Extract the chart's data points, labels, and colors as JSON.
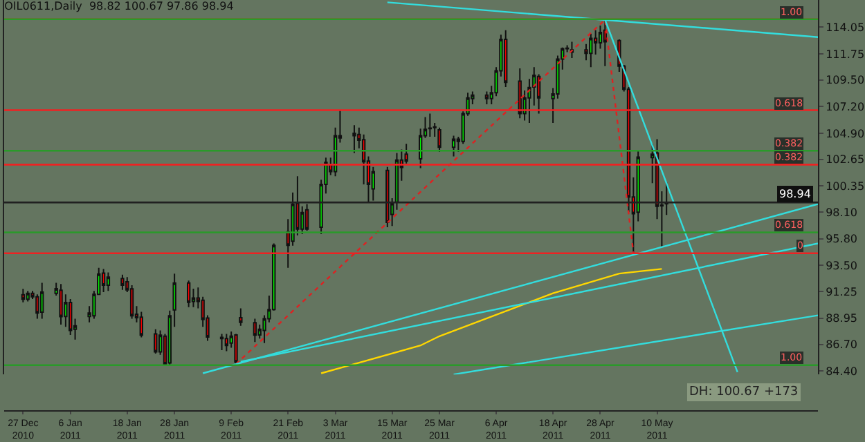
{
  "chart_data": {
    "type": "candlestick",
    "title": "OIL0611,Daily  98.82 100.67 97.86 98.94",
    "x": [
      "2010-12-27",
      "2010-12-28",
      "2010-12-29",
      "2010-12-30",
      "2010-12-31",
      "2011-01-03",
      "2011-01-04",
      "2011-01-05",
      "2011-01-06",
      "2011-01-07",
      "2011-01-10",
      "2011-01-11",
      "2011-01-12",
      "2011-01-13",
      "2011-01-14",
      "2011-01-17",
      "2011-01-18",
      "2011-01-19",
      "2011-01-20",
      "2011-01-21",
      "2011-01-24",
      "2011-01-25",
      "2011-01-26",
      "2011-01-27",
      "2011-01-28",
      "2011-01-31",
      "2011-02-01",
      "2011-02-02",
      "2011-02-03",
      "2011-02-04",
      "2011-02-07",
      "2011-02-08",
      "2011-02-09",
      "2011-02-10",
      "2011-02-11",
      "2011-02-14",
      "2011-02-15",
      "2011-02-16",
      "2011-02-17",
      "2011-02-18",
      "2011-02-21",
      "2011-02-22",
      "2011-02-23",
      "2011-02-24",
      "2011-02-25",
      "2011-02-28",
      "2011-03-01",
      "2011-03-02",
      "2011-03-03",
      "2011-03-04",
      "2011-03-07",
      "2011-03-08",
      "2011-03-09",
      "2011-03-10",
      "2011-03-11",
      "2011-03-14",
      "2011-03-15",
      "2011-03-16",
      "2011-03-17",
      "2011-03-18",
      "2011-03-21",
      "2011-03-22",
      "2011-03-23",
      "2011-03-24",
      "2011-03-25",
      "2011-03-28",
      "2011-03-29",
      "2011-03-30",
      "2011-03-31",
      "2011-04-01",
      "2011-04-04",
      "2011-04-05",
      "2011-04-06",
      "2011-04-07",
      "2011-04-08",
      "2011-04-11",
      "2011-04-12",
      "2011-04-13",
      "2011-04-14",
      "2011-04-15",
      "2011-04-18",
      "2011-04-19",
      "2011-04-20",
      "2011-04-21",
      "2011-04-22",
      "2011-04-25",
      "2011-04-26",
      "2011-04-27",
      "2011-04-28",
      "2011-04-29",
      "2011-05-02",
      "2011-05-03",
      "2011-05-04",
      "2011-05-05",
      "2011-05-06",
      "2011-05-09",
      "2011-05-10",
      "2011-05-11",
      "2011-05-12"
    ],
    "ohlc": [
      [
        90.98,
        91.48,
        90.32,
        90.59
      ],
      [
        90.59,
        91.3,
        90.4,
        91.1
      ],
      [
        91.1,
        91.3,
        90.6,
        90.8
      ],
      [
        90.8,
        91.0,
        88.9,
        89.4
      ],
      [
        89.47,
        92.0,
        88.9,
        91.21
      ],
      [
        91.1,
        92.0,
        90.9,
        91.5
      ],
      [
        91.36,
        91.9,
        88.4,
        89.08
      ],
      [
        89.1,
        91.0,
        88.2,
        90.3
      ],
      [
        90.3,
        90.6,
        87.5,
        87.9
      ],
      [
        88.0,
        88.9,
        87.1,
        88.3
      ],
      [
        89.1,
        90.0,
        88.6,
        89.4
      ],
      [
        89.16,
        91.3,
        88.9,
        91.02
      ],
      [
        91.0,
        93.3,
        91.0,
        92.76
      ],
      [
        92.84,
        93.2,
        91.2,
        91.79
      ],
      [
        91.8,
        92.9,
        91.3,
        92.5
      ],
      [
        92.37,
        92.7,
        91.4,
        91.79
      ],
      [
        92.1,
        92.5,
        91.2,
        91.4
      ],
      [
        91.48,
        91.8,
        88.9,
        89.16
      ],
      [
        89.3,
        90.0,
        88.6,
        89.0
      ],
      [
        89.04,
        89.5,
        87.3,
        87.49
      ],
      [
        87.6,
        88.0,
        85.9,
        86.05
      ],
      [
        86.05,
        87.9,
        85.8,
        87.49
      ],
      [
        87.4,
        87.6,
        84.9,
        85.0
      ],
      [
        85.1,
        89.6,
        84.9,
        89.16
      ],
      [
        89.66,
        92.8,
        88.2,
        91.99
      ],
      [
        91.99,
        92.2,
        89.9,
        90.32
      ],
      [
        90.4,
        91.5,
        89.9,
        90.7
      ],
      [
        90.7,
        91.6,
        89.8,
        90.4
      ],
      [
        90.5,
        90.8,
        88.2,
        88.85
      ],
      [
        88.96,
        89.2,
        87.0,
        87.33
      ],
      [
        87.3,
        87.6,
        86.2,
        87.2
      ],
      [
        87.2,
        87.6,
        86.1,
        86.6
      ],
      [
        86.8,
        87.8,
        86.4,
        87.4
      ],
      [
        87.5,
        87.6,
        85.0,
        85.17
      ],
      [
        89.0,
        89.8,
        88.3,
        88.6
      ],
      [
        88.57,
        88.9,
        86.9,
        87.49
      ],
      [
        87.5,
        88.4,
        87.2,
        88.0
      ],
      [
        87.9,
        89.2,
        86.8,
        88.9
      ],
      [
        88.9,
        90.9,
        88.6,
        89.7
      ],
      [
        89.7,
        95.4,
        89.6,
        95.24
      ],
      [
        96.4,
        97.5,
        93.3,
        95.24
      ],
      [
        95.6,
        99.8,
        95.2,
        98.8
      ],
      [
        98.85,
        101.2,
        96.1,
        96.64
      ],
      [
        96.64,
        98.6,
        96.2,
        98.07
      ],
      [
        98.3,
        98.8,
        96.5,
        96.64
      ],
      [
        96.8,
        100.9,
        96.2,
        100.5
      ],
      [
        100.5,
        102.8,
        99.7,
        102.4
      ],
      [
        102.2,
        102.8,
        101.3,
        101.6
      ],
      [
        101.6,
        105.4,
        101.2,
        104.7
      ],
      [
        104.5,
        106.9,
        104.1,
        104.7
      ],
      [
        104.7,
        105.6,
        103.2,
        104.9
      ],
      [
        104.8,
        105.4,
        103.6,
        104.3
      ],
      [
        104.35,
        104.8,
        100.5,
        102.45
      ],
      [
        102.5,
        102.9,
        99.0,
        100.5
      ],
      [
        100.1,
        102.0,
        99.1,
        101.6
      ],
      [
        101.7,
        102.0,
        96.8,
        97.22
      ],
      [
        97.9,
        99.3,
        96.9,
        98.85
      ],
      [
        98.96,
        103.2,
        98.3,
        102.6
      ],
      [
        102.6,
        103.5,
        100.8,
        101.95
      ],
      [
        103.1,
        104.0,
        102.3,
        102.5
      ],
      [
        102.7,
        105.3,
        101.9,
        104.7
      ],
      [
        104.7,
        106.3,
        104.5,
        105.25
      ],
      [
        105.3,
        106.6,
        104.6,
        105.35
      ],
      [
        105.4,
        105.8,
        104.6,
        105.45
      ],
      [
        105.2,
        105.4,
        103.3,
        103.7
      ],
      [
        103.7,
        104.7,
        102.9,
        104.4
      ],
      [
        104.4,
        104.6,
        103.3,
        104.2
      ],
      [
        104.2,
        106.8,
        104.0,
        106.6
      ],
      [
        106.6,
        108.4,
        106.4,
        107.96
      ],
      [
        107.9,
        108.5,
        107.4,
        108.2
      ],
      [
        108.2,
        108.5,
        107.4,
        107.9
      ],
      [
        107.9,
        109.0,
        107.4,
        108.4
      ],
      [
        108.4,
        110.6,
        108.1,
        110.3
      ],
      [
        110.3,
        113.4,
        109.8,
        113.0
      ],
      [
        113.0,
        113.8,
        108.9,
        109.3
      ],
      [
        109.4,
        110.5,
        106.2,
        106.6
      ],
      [
        106.6,
        108.6,
        106.0,
        107.96
      ],
      [
        107.96,
        109.6,
        105.8,
        108.85
      ],
      [
        108.9,
        110.6,
        107.3,
        109.9
      ],
      [
        109.8,
        110.0,
        106.6,
        107.96
      ],
      [
        107.9,
        108.8,
        105.8,
        108.3
      ],
      [
        108.3,
        111.6,
        107.9,
        111.3
      ],
      [
        111.3,
        112.3,
        110.4,
        112.2
      ],
      [
        112.2,
        112.5,
        111.9,
        112.25
      ],
      [
        111.9,
        112.8,
        111.4,
        112.1
      ],
      [
        112.1,
        112.6,
        111.2,
        111.8
      ],
      [
        111.8,
        113.5,
        110.6,
        113.1
      ],
      [
        113.1,
        113.8,
        111.7,
        112.7
      ],
      [
        112.7,
        114.2,
        112.2,
        113.6
      ],
      [
        113.8,
        114.7,
        110.7,
        112.8
      ],
      [
        112.9,
        113.0,
        110.2,
        110.7
      ],
      [
        110.7,
        110.8,
        108.5,
        108.7
      ],
      [
        108.7,
        108.9,
        98.1,
        99.4
      ],
      [
        99.4,
        101.1,
        94.6,
        97.96
      ],
      [
        98.1,
        103.4,
        97.3,
        102.84
      ],
      [
        102.8,
        104.0,
        100.6,
        103.1
      ],
      [
        103.2,
        104.4,
        97.5,
        98.6
      ],
      [
        98.7,
        99.9,
        95.1,
        98.65
      ],
      [
        98.82,
        100.67,
        97.86,
        98.94
      ]
    ],
    "series": [
      {
        "type": "line",
        "color": "#ffd700",
        "line_style": "solid",
        "x": [
          "2011-02-28",
          "2011-03-21",
          "2011-03-25",
          "2011-04-18",
          "2011-05-02",
          "2011-05-11"
        ],
        "values": [
          84.2,
          86.6,
          87.4,
          91.1,
          92.8,
          93.2
        ]
      },
      {
        "type": "line",
        "color": "#dd2222",
        "line_style": "dotted",
        "x": [
          "2011-02-10",
          "2011-04-29",
          "2011-05-05"
        ],
        "values": [
          85.0,
          114.7,
          94.6
        ]
      },
      {
        "type": "line",
        "color": "#33dddd",
        "line_style": "solid",
        "x": [
          "2011-03-14",
          "2011-06-13"
        ],
        "values": [
          116.2,
          113.2
        ]
      },
      {
        "type": "line",
        "color": "#33dddd",
        "line_style": "solid",
        "x": [
          "2011-04-29",
          "2011-05-27"
        ],
        "values": [
          114.7,
          84.3
        ]
      },
      {
        "type": "line",
        "color": "#33dddd",
        "line_style": "solid",
        "x": [
          "2011-02-03",
          "2011-06-13"
        ],
        "values": [
          84.2,
          98.8
        ]
      },
      {
        "type": "line",
        "color": "#33dddd",
        "line_style": "solid",
        "x": [
          "2011-02-11",
          "2011-06-13"
        ],
        "values": [
          85.2,
          95.4
        ]
      },
      {
        "type": "line",
        "color": "#33dddd",
        "line_style": "solid",
        "x": [
          "2011-03-28",
          "2011-06-13"
        ],
        "values": [
          84.1,
          89.2
        ]
      }
    ],
    "ref_lines": [
      {
        "axis": "y",
        "value": 114.75,
        "color": "#ee2222"
      },
      {
        "axis": "y",
        "value": 114.75,
        "color": "#2a9a2a"
      },
      {
        "axis": "y",
        "value": 106.9,
        "color": "#ee2222"
      },
      {
        "axis": "y",
        "value": 103.4,
        "color": "#2a9a2a"
      },
      {
        "axis": "y",
        "value": 102.2,
        "color": "#ee2222"
      },
      {
        "axis": "y",
        "value": 98.94,
        "label": "98.94",
        "color": "#202020"
      },
      {
        "axis": "y",
        "value": 96.35,
        "color": "#2a9a2a"
      },
      {
        "axis": "y",
        "value": 94.55,
        "color": "#ee2222"
      },
      {
        "axis": "y",
        "value": 84.9,
        "color": "#2a9a2a"
      }
    ],
    "annotations": [
      "DH: 100.67 +173",
      {
        "text": "1.00",
        "x": "2011-06-10",
        "y": 114.75
      },
      {
        "text": "0.618",
        "x": "2011-06-10",
        "y": 106.9
      },
      {
        "text": "0.382",
        "x": "2011-06-10",
        "y": 103.4
      },
      {
        "text": "0.382",
        "x": "2011-06-10",
        "y": 102.2
      },
      {
        "text": "0.618",
        "x": "2011-06-10",
        "y": 96.35
      },
      {
        "text": "0",
        "x": "2011-06-10",
        "y": 94.55
      },
      {
        "text": "1.00",
        "x": "2011-06-10",
        "y": 84.9
      }
    ],
    "xlim": [
      "2010-12-23",
      "2011-06-13"
    ],
    "xticks": [
      {
        "value": "2010-12-27",
        "label": "27 Dec 2010"
      },
      {
        "value": "2011-01-06",
        "label": "6 Jan 2011"
      },
      {
        "value": "2011-01-18",
        "label": "18 Jan 2011"
      },
      {
        "value": "2011-01-28",
        "label": "28 Jan 2011"
      },
      {
        "value": "2011-02-09",
        "label": "9 Feb 2011"
      },
      {
        "value": "2011-02-21",
        "label": "21 Feb 2011"
      },
      {
        "value": "2011-03-03",
        "label": "3 Mar 2011"
      },
      {
        "value": "2011-03-15",
        "label": "15 Mar 2011"
      },
      {
        "value": "2011-03-25",
        "label": "25 Mar 2011"
      },
      {
        "value": "2011-04-06",
        "label": "6 Apr 2011"
      },
      {
        "value": "2011-04-18",
        "label": "18 Apr 2011"
      },
      {
        "value": "2011-04-28",
        "label": "28 Apr 2011"
      },
      {
        "value": "2011-05-10",
        "label": "10 May 2011"
      }
    ],
    "ylim": [
      84.1,
      116.4
    ],
    "yticks": [
      {
        "value": 84.4,
        "label": "84.40"
      },
      {
        "value": 86.7,
        "label": "86.70"
      },
      88.95,
      91.25,
      {
        "value": 93.5,
        "label": "93.50"
      },
      {
        "value": 95.8,
        "label": "95.80"
      },
      {
        "value": 98.1,
        "label": "98.10"
      },
      100.35,
      102.65,
      {
        "value": 104.9,
        "label": "104.90"
      },
      {
        "value": 107.2,
        "label": "107.20"
      },
      {
        "value": 109.5,
        "label": "109.50"
      },
      111.75,
      114.05
    ],
    "grid": false
  }
}
